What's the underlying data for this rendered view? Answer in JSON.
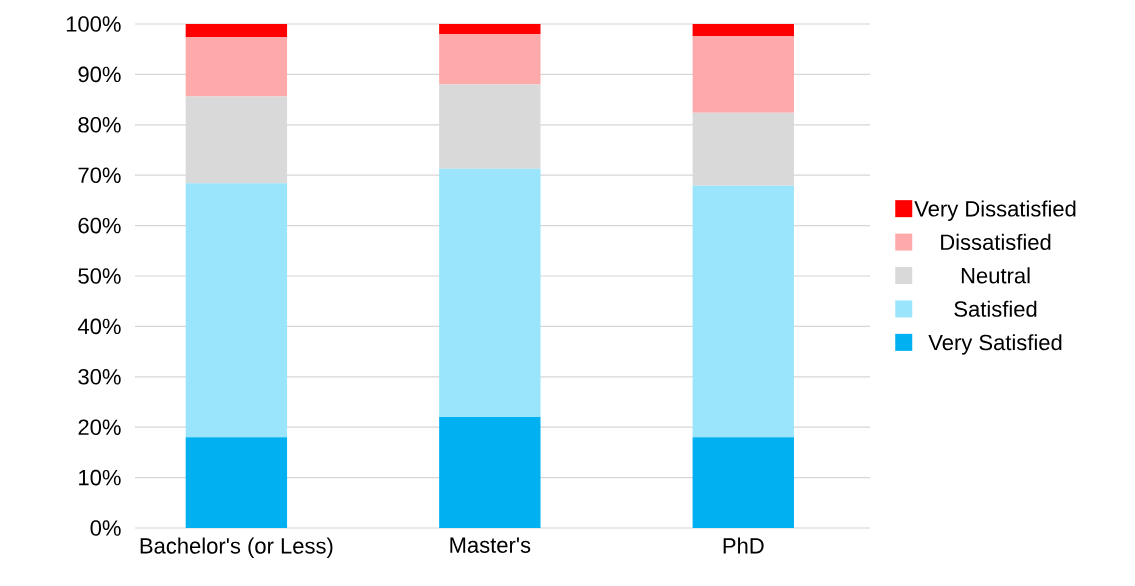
{
  "chart_data": {
    "type": "bar",
    "stacked": true,
    "categories": [
      "Bachelor's (or Less)",
      "Master's",
      "PhD"
    ],
    "series": [
      {
        "name": "Very Satisfied",
        "color": "#00b0f0",
        "values": [
          18.0,
          22.0,
          18.0
        ]
      },
      {
        "name": "Satisfied",
        "color": "#9be5fc",
        "values": [
          50.4,
          49.3,
          49.9
        ]
      },
      {
        "name": "Neutral",
        "color": "#d9d9d9",
        "values": [
          17.2,
          16.7,
          14.5
        ]
      },
      {
        "name": "Dissatisfied",
        "color": "#ffaaaa",
        "values": [
          11.8,
          10.0,
          15.2
        ]
      },
      {
        "name": "Very Dissatisfied",
        "color": "#ff0000",
        "values": [
          2.6,
          2.0,
          2.4
        ]
      }
    ],
    "ylim": [
      0,
      100
    ],
    "yticks": [
      {
        "value": 0,
        "label": "0%"
      },
      {
        "value": 10,
        "label": "10%"
      },
      {
        "value": 20,
        "label": "20%"
      },
      {
        "value": 30,
        "label": "30%"
      },
      {
        "value": 40,
        "label": "40%"
      },
      {
        "value": 50,
        "label": "50%"
      },
      {
        "value": 60,
        "label": "60%"
      },
      {
        "value": 70,
        "label": "70%"
      },
      {
        "value": 80,
        "label": "80%"
      },
      {
        "value": 90,
        "label": "90%"
      },
      {
        "value": 100,
        "label": "100%"
      }
    ],
    "grid": "y",
    "legend": "right"
  }
}
